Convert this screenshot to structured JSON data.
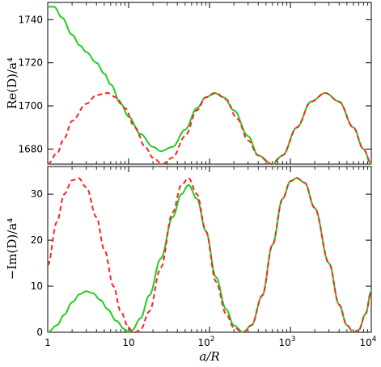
{
  "chart_data": [
    {
      "type": "line",
      "ylabel": "Re(D)/a⁴",
      "xscale": "log",
      "xlim": [
        1,
        10000
      ],
      "ylim": [
        1673,
        1748
      ],
      "yticks": [
        1680,
        1700,
        1720,
        1740
      ],
      "grid": false,
      "legend": "none",
      "series": [
        {
          "color": "#22cc22",
          "style": "solid",
          "points": [
            [
              1,
              1746
            ],
            [
              1.2,
              1746
            ],
            [
              1.5,
              1741
            ],
            [
              2,
              1733
            ],
            [
              2.5,
              1728
            ],
            [
              3,
              1725
            ],
            [
              4,
              1720
            ],
            [
              5,
              1715
            ],
            [
              6,
              1710
            ],
            [
              8,
              1701
            ],
            [
              10,
              1695
            ],
            [
              14,
              1687
            ],
            [
              20,
              1681
            ],
            [
              25,
              1679
            ],
            [
              35,
              1681
            ],
            [
              50,
              1689
            ],
            [
              70,
              1699
            ],
            [
              90,
              1704
            ],
            [
              115,
              1706
            ],
            [
              150,
              1704
            ],
            [
              200,
              1698
            ],
            [
              300,
              1686
            ],
            [
              400,
              1677
            ],
            [
              600,
              1673
            ],
            [
              800,
              1677
            ],
            [
              1200,
              1690
            ],
            [
              1800,
              1702
            ],
            [
              2700,
              1706
            ],
            [
              4000,
              1702
            ],
            [
              6000,
              1690
            ],
            [
              8000,
              1680
            ],
            [
              10000,
              1673
            ]
          ]
        },
        {
          "color": "#ff2222",
          "style": "dashed",
          "points": [
            [
              1,
              1673
            ],
            [
              1.3,
              1678
            ],
            [
              1.6,
              1685
            ],
            [
              2,
              1693
            ],
            [
              3,
              1701
            ],
            [
              4,
              1705
            ],
            [
              5.5,
              1706
            ],
            [
              7,
              1704
            ],
            [
              9,
              1699
            ],
            [
              12,
              1690
            ],
            [
              16,
              1681
            ],
            [
              20,
              1676
            ],
            [
              26,
              1673
            ],
            [
              35,
              1676
            ],
            [
              50,
              1686
            ],
            [
              70,
              1698
            ],
            [
              90,
              1704
            ],
            [
              120,
              1706
            ],
            [
              160,
              1703
            ],
            [
              220,
              1694
            ],
            [
              300,
              1684
            ],
            [
              400,
              1677
            ],
            [
              580,
              1673
            ],
            [
              800,
              1677
            ],
            [
              1200,
              1690
            ],
            [
              1800,
              1702
            ],
            [
              2700,
              1706
            ],
            [
              4000,
              1702
            ],
            [
              6000,
              1690
            ],
            [
              8000,
              1680
            ],
            [
              10000,
              1673
            ]
          ]
        }
      ]
    },
    {
      "type": "line",
      "ylabel": "−Im(D)/a⁴",
      "xlabel": "a/R",
      "xscale": "log",
      "xlim": [
        1,
        10000
      ],
      "ylim": [
        0,
        36
      ],
      "yticks": [
        0,
        10,
        20,
        30
      ],
      "xticks": [
        1,
        10,
        100,
        1000,
        10000
      ],
      "xticklabels": [
        "1",
        "10",
        "10",
        "10",
        "10"
      ],
      "xtickexponents": [
        "",
        "",
        "2",
        "3",
        "4"
      ],
      "grid": false,
      "legend": "none",
      "series": [
        {
          "color": "#22cc22",
          "style": "solid",
          "points": [
            [
              1,
              0
            ],
            [
              1.3,
              1.5
            ],
            [
              1.6,
              3.8
            ],
            [
              2,
              6.5
            ],
            [
              2.5,
              8.3
            ],
            [
              3,
              8.9
            ],
            [
              3.6,
              8.5
            ],
            [
              4.5,
              7
            ],
            [
              5.5,
              5
            ],
            [
              7,
              2.5
            ],
            [
              9,
              0.6
            ],
            [
              10,
              0
            ],
            [
              11,
              0.4
            ],
            [
              14,
              3
            ],
            [
              18,
              8
            ],
            [
              25,
              16
            ],
            [
              35,
              25
            ],
            [
              45,
              30
            ],
            [
              55,
              32
            ],
            [
              70,
              29
            ],
            [
              90,
              22
            ],
            [
              120,
              12
            ],
            [
              160,
              5
            ],
            [
              200,
              1.5
            ],
            [
              260,
              0
            ],
            [
              330,
              1.5
            ],
            [
              450,
              8
            ],
            [
              600,
              19
            ],
            [
              800,
              29
            ],
            [
              1000,
              32.8
            ],
            [
              1200,
              33.5
            ],
            [
              1500,
              32.5
            ],
            [
              2000,
              27
            ],
            [
              3000,
              15
            ],
            [
              4000,
              6
            ],
            [
              5000,
              1.5
            ],
            [
              6000,
              0
            ],
            [
              7000,
              0.5
            ],
            [
              8500,
              4
            ],
            [
              10000,
              9
            ]
          ]
        },
        {
          "color": "#ff2222",
          "style": "dashed",
          "points": [
            [
              1,
              14.5
            ],
            [
              1.3,
              24
            ],
            [
              1.6,
              30
            ],
            [
              2,
              33
            ],
            [
              2.4,
              33.5
            ],
            [
              3,
              31.5
            ],
            [
              4,
              25
            ],
            [
              5,
              18
            ],
            [
              6.5,
              10
            ],
            [
              8,
              4.5
            ],
            [
              10,
              1
            ],
            [
              11,
              0.3
            ],
            [
              12,
              0
            ],
            [
              14,
              0.5
            ],
            [
              18,
              4.5
            ],
            [
              25,
              14
            ],
            [
              35,
              26
            ],
            [
              45,
              32
            ],
            [
              55,
              33.5
            ],
            [
              70,
              30
            ],
            [
              90,
              22
            ],
            [
              120,
              11
            ],
            [
              160,
              4
            ],
            [
              200,
              1
            ],
            [
              260,
              0
            ],
            [
              330,
              1.5
            ],
            [
              450,
              8
            ],
            [
              600,
              19
            ],
            [
              800,
              29
            ],
            [
              1000,
              32.8
            ],
            [
              1200,
              33.5
            ],
            [
              1500,
              32.5
            ],
            [
              2000,
              27
            ],
            [
              3000,
              15
            ],
            [
              4000,
              6
            ],
            [
              5000,
              1.5
            ],
            [
              6000,
              0
            ],
            [
              7000,
              0.5
            ],
            [
              8500,
              4
            ],
            [
              10000,
              9
            ]
          ]
        }
      ]
    }
  ]
}
